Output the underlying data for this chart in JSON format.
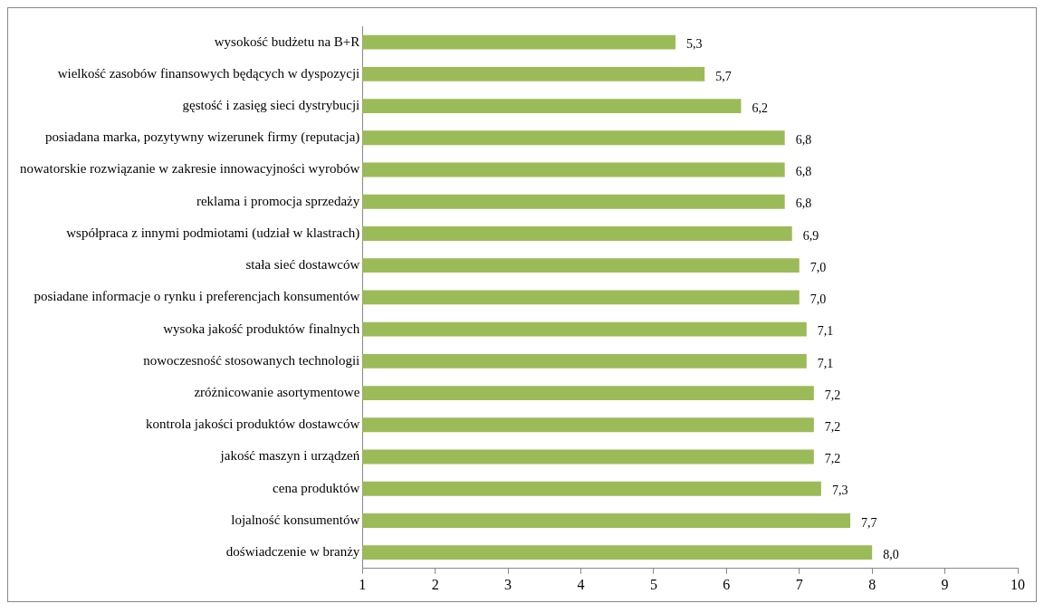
{
  "chart_data": {
    "type": "bar",
    "orientation": "horizontal",
    "categories": [
      "wysokość budżetu na B+R",
      "wielkość zasobów finansowych będących w dyspozycji",
      "gęstość i zasięg sieci dystrybucji",
      "posiadana marka, pozytywny wizerunek firmy (reputacja)",
      "nowatorskie rozwiązanie w zakresie innowacyjności wyrobów",
      "reklama i promocja sprzedaży",
      "współpraca z innymi podmiotami (udział w klastrach)",
      "stała sieć dostawców",
      "posiadane informacje o rynku i preferencjach konsumentów",
      "wysoka jakość produktów finalnych",
      "nowoczesność stosowanych technologii",
      "zróżnicowanie asortymentowe",
      "kontrola jakości produktów dostawców",
      "jakość maszyn i urządzeń",
      "cena produktów",
      "lojalność konsumentów",
      "doświadczenie w branży"
    ],
    "values": [
      5.3,
      5.7,
      6.2,
      6.8,
      6.8,
      6.8,
      6.9,
      7.0,
      7.0,
      7.1,
      7.1,
      7.2,
      7.2,
      7.2,
      7.3,
      7.7,
      8.0
    ],
    "value_labels": [
      "5,3",
      "5,7",
      "6,2",
      "6,8",
      "6,8",
      "6,8",
      "6,9",
      "7,0",
      "7,0",
      "7,1",
      "7,1",
      "7,2",
      "7,2",
      "7,2",
      "7,3",
      "7,7",
      "8,0"
    ],
    "color": "#9bbb59",
    "xlim": [
      1,
      10
    ],
    "xticks": [
      1,
      2,
      3,
      4,
      5,
      6,
      7,
      8,
      9,
      10
    ],
    "grid": false,
    "legend": false
  }
}
